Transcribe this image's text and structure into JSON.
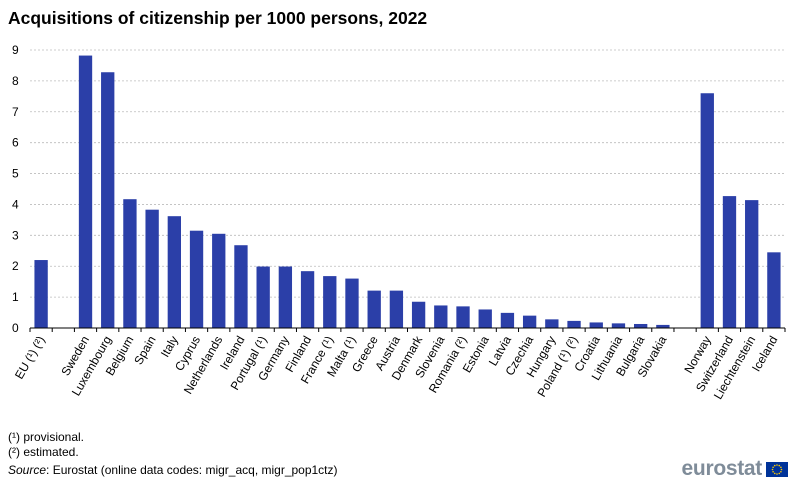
{
  "title": "Acquisitions of citizenship per 1000 persons, 2022",
  "footnotes": [
    "(¹) provisional.",
    "(²) estimated."
  ],
  "source": {
    "label": "Source",
    "text": ": Eurostat (online data codes: migr_acq, migr_pop1ctz)"
  },
  "logo": {
    "text": "eurostat",
    "flag_icon": "eu-flag-icon"
  },
  "colors": {
    "bar": "#2b3fa8",
    "grid": "#bcbcbc",
    "axis": "#000000"
  },
  "chart_data": {
    "type": "bar",
    "title": "Acquisitions of citizenship per 1000 persons, 2022",
    "xlabel": "",
    "ylabel": "",
    "ylim": [
      0,
      9
    ],
    "yticks": [
      0,
      1,
      2,
      3,
      4,
      5,
      6,
      7,
      8,
      9
    ],
    "grid": true,
    "categories": [
      "EU (¹) (²)",
      "",
      "Sweden",
      "Luxembourg",
      "Belgium",
      "Spain",
      "Italy",
      "Cyprus",
      "Netherlands",
      "Ireland",
      "Portugal (¹)",
      "Germany",
      "Finland",
      "France (¹)",
      "Malta (¹)",
      "Greece",
      "Austria",
      "Denmark",
      "Slovenia",
      "Romania (²)",
      "Estonia",
      "Latvia",
      "Czechia",
      "Hungary",
      "Poland (¹) (²)",
      "Croatia",
      "Lithuania",
      "Bulgaria",
      "Slovakia",
      "",
      "Norway",
      "Switzerland",
      "Liechtenstein",
      "Iceland"
    ],
    "values": [
      2.2,
      null,
      8.82,
      8.28,
      4.17,
      3.83,
      3.62,
      3.15,
      3.05,
      2.68,
      1.99,
      1.99,
      1.84,
      1.68,
      1.6,
      1.21,
      1.21,
      0.85,
      0.73,
      0.7,
      0.6,
      0.49,
      0.4,
      0.28,
      0.23,
      0.18,
      0.15,
      0.13,
      0.1,
      null,
      7.6,
      4.27,
      4.14,
      2.45
    ]
  }
}
